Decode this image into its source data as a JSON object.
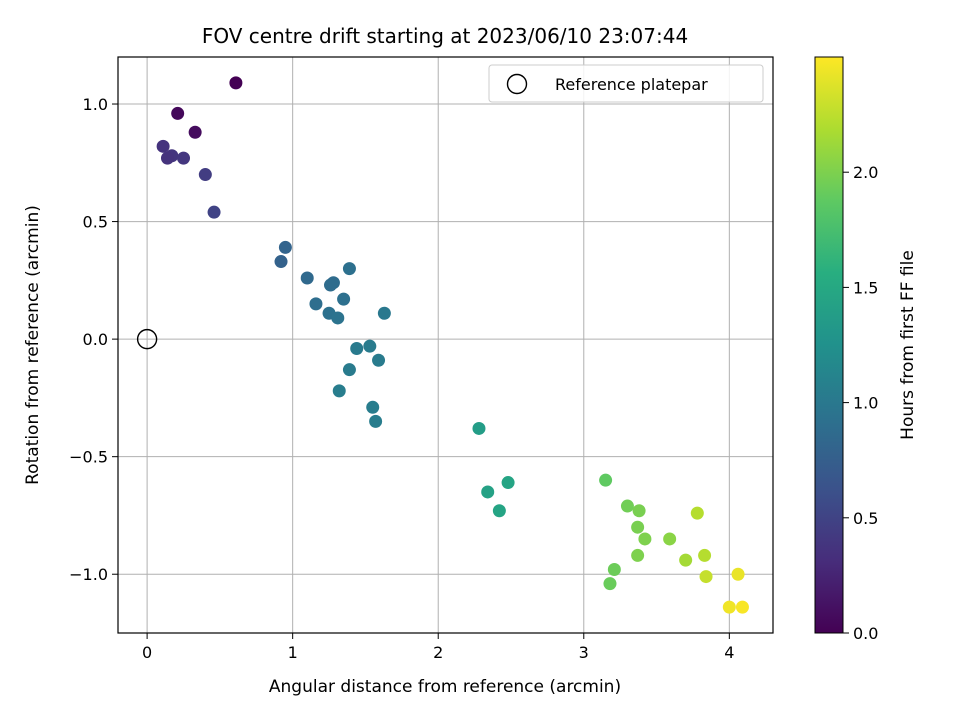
{
  "chart_data": {
    "type": "scatter",
    "title": "FOV centre drift starting at 2023/06/10 23:07:44",
    "xlabel": "Angular distance from reference (arcmin)",
    "ylabel": "Rotation from reference (arcmin)",
    "xlim": [
      -0.2,
      4.3
    ],
    "ylim": [
      -1.25,
      1.2
    ],
    "xticks": [
      0,
      1,
      2,
      3,
      4
    ],
    "xtick_labels": [
      "0",
      "1",
      "2",
      "3",
      "4"
    ],
    "yticks": [
      -1.0,
      -0.5,
      0.0,
      0.5,
      1.0
    ],
    "ytick_labels": [
      "−1.0",
      "−0.5",
      "0.0",
      "0.5",
      "1.0"
    ],
    "grid": true,
    "legend": {
      "placement": "top-right",
      "entries": [
        "Reference platepar"
      ]
    },
    "reference_point": {
      "x": 0,
      "y": 0,
      "name": "Reference platepar"
    },
    "colorbar": {
      "label": "Hours from first FF file",
      "range": [
        0,
        2.5
      ],
      "ticks": [
        0.0,
        0.5,
        1.0,
        1.5,
        2.0
      ],
      "tick_labels": [
        "0.0",
        "0.5",
        "1.0",
        "1.5",
        "2.0"
      ],
      "colormap": "viridis"
    },
    "points": [
      {
        "x": 0.61,
        "y": 1.09,
        "c": 0.0
      },
      {
        "x": 0.21,
        "y": 0.96,
        "c": 0.05
      },
      {
        "x": 0.33,
        "y": 0.88,
        "c": 0.08
      },
      {
        "x": 0.11,
        "y": 0.82,
        "c": 0.36
      },
      {
        "x": 0.17,
        "y": 0.78,
        "c": 0.38
      },
      {
        "x": 0.14,
        "y": 0.77,
        "c": 0.36
      },
      {
        "x": 0.25,
        "y": 0.77,
        "c": 0.4
      },
      {
        "x": 0.4,
        "y": 0.7,
        "c": 0.45
      },
      {
        "x": 0.46,
        "y": 0.54,
        "c": 0.5
      },
      {
        "x": 0.95,
        "y": 0.39,
        "c": 0.8
      },
      {
        "x": 0.92,
        "y": 0.33,
        "c": 0.78
      },
      {
        "x": 1.1,
        "y": 0.26,
        "c": 0.85
      },
      {
        "x": 1.28,
        "y": 0.24,
        "c": 0.88
      },
      {
        "x": 1.26,
        "y": 0.23,
        "c": 0.88
      },
      {
        "x": 1.39,
        "y": 0.3,
        "c": 0.92
      },
      {
        "x": 1.16,
        "y": 0.15,
        "c": 0.9
      },
      {
        "x": 1.35,
        "y": 0.17,
        "c": 0.92
      },
      {
        "x": 1.25,
        "y": 0.11,
        "c": 0.93
      },
      {
        "x": 1.31,
        "y": 0.09,
        "c": 0.95
      },
      {
        "x": 1.63,
        "y": 0.11,
        "c": 1.0
      },
      {
        "x": 1.44,
        "y": -0.04,
        "c": 1.02
      },
      {
        "x": 1.53,
        "y": -0.03,
        "c": 1.03
      },
      {
        "x": 1.59,
        "y": -0.09,
        "c": 1.03
      },
      {
        "x": 1.39,
        "y": -0.13,
        "c": 1.03
      },
      {
        "x": 1.32,
        "y": -0.22,
        "c": 1.05
      },
      {
        "x": 1.55,
        "y": -0.29,
        "c": 1.05
      },
      {
        "x": 1.57,
        "y": -0.35,
        "c": 1.05
      },
      {
        "x": 2.28,
        "y": -0.38,
        "c": 1.38
      },
      {
        "x": 2.34,
        "y": -0.65,
        "c": 1.42
      },
      {
        "x": 2.48,
        "y": -0.61,
        "c": 1.45
      },
      {
        "x": 2.42,
        "y": -0.73,
        "c": 1.45
      },
      {
        "x": 3.15,
        "y": -0.6,
        "c": 1.88
      },
      {
        "x": 3.3,
        "y": -0.71,
        "c": 1.95
      },
      {
        "x": 3.38,
        "y": -0.73,
        "c": 1.98
      },
      {
        "x": 3.37,
        "y": -0.8,
        "c": 1.98
      },
      {
        "x": 3.42,
        "y": -0.85,
        "c": 2.0
      },
      {
        "x": 3.59,
        "y": -0.85,
        "c": 2.05
      },
      {
        "x": 3.37,
        "y": -0.92,
        "c": 2.0
      },
      {
        "x": 3.21,
        "y": -0.98,
        "c": 1.93
      },
      {
        "x": 3.18,
        "y": -1.04,
        "c": 1.92
      },
      {
        "x": 3.7,
        "y": -0.94,
        "c": 2.15
      },
      {
        "x": 3.78,
        "y": -0.74,
        "c": 2.22
      },
      {
        "x": 3.83,
        "y": -0.92,
        "c": 2.22
      },
      {
        "x": 3.84,
        "y": -1.01,
        "c": 2.28
      },
      {
        "x": 4.06,
        "y": -1.0,
        "c": 2.42
      },
      {
        "x": 4.0,
        "y": -1.14,
        "c": 2.45
      },
      {
        "x": 4.09,
        "y": -1.14,
        "c": 2.48
      }
    ]
  }
}
